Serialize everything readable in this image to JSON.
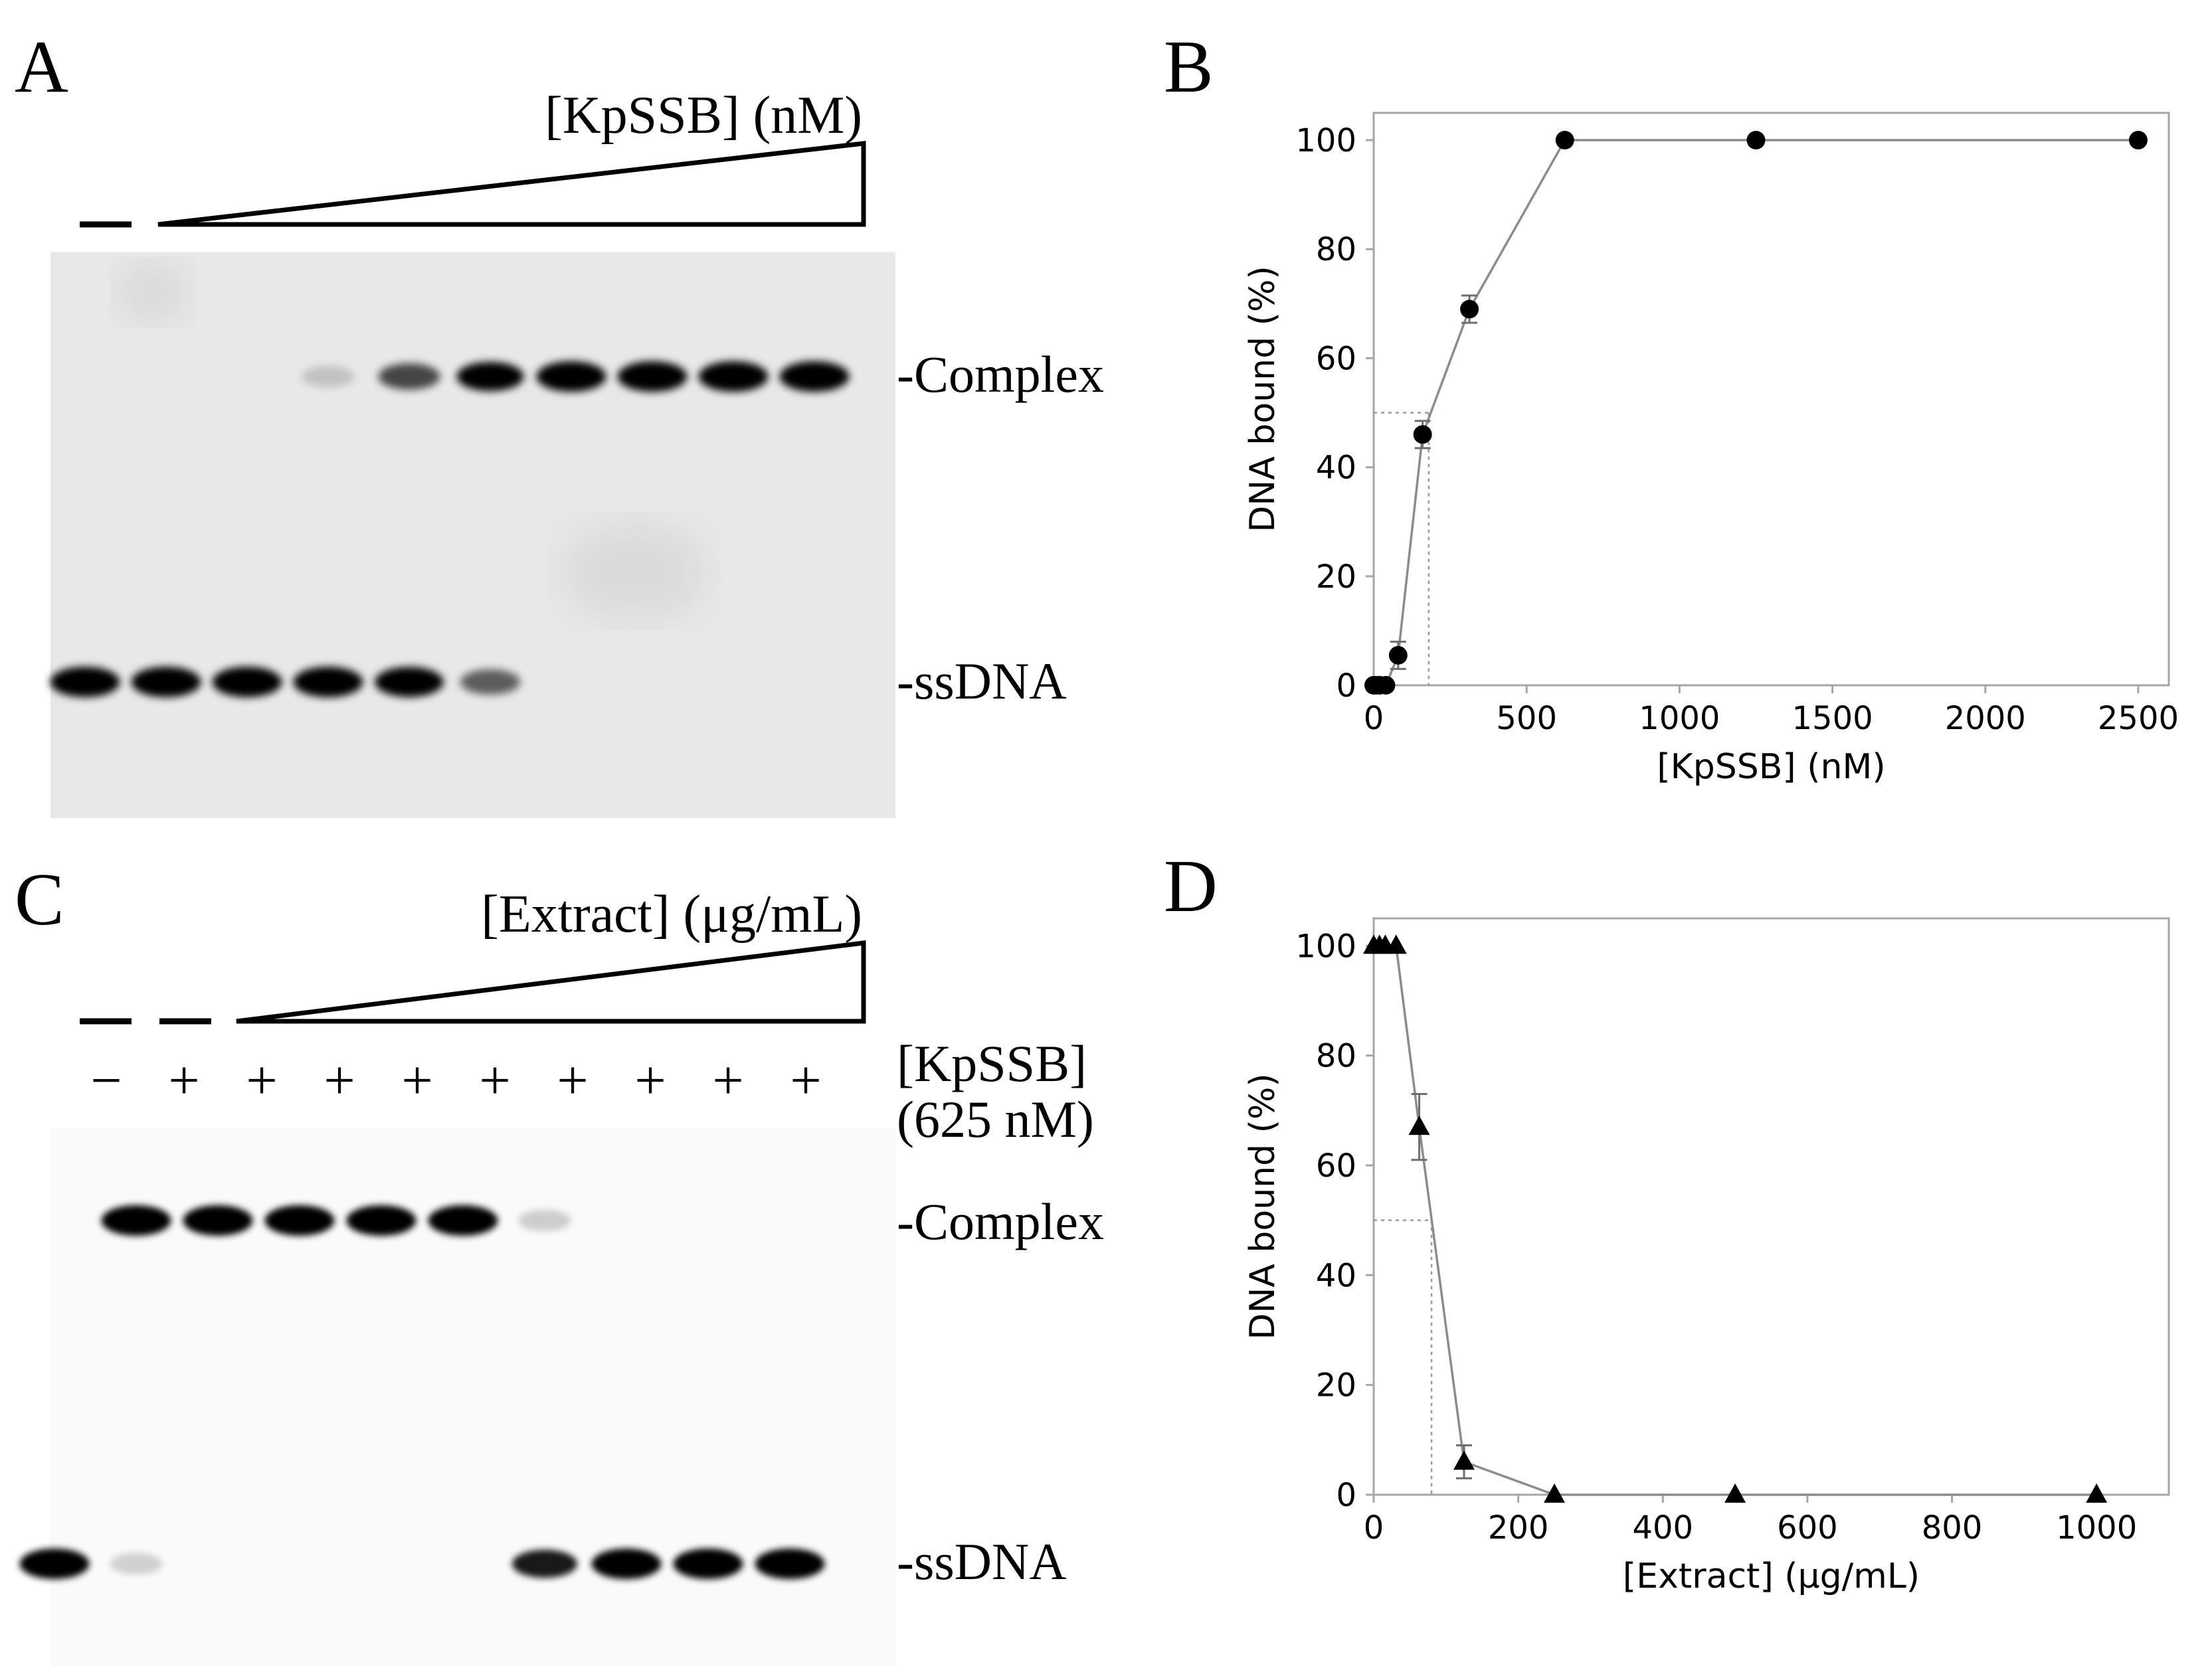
{
  "figure": {
    "panel_a": {
      "letter": "A",
      "gradient_label": "[KpSSB] (nM)",
      "band_labels": {
        "complex": "-Complex",
        "ssdna": "-ssDNA"
      },
      "lanes": [
        {
          "complex": 0.0,
          "free": 1.0
        },
        {
          "complex": 0.0,
          "free": 1.0
        },
        {
          "complex": 0.0,
          "free": 1.0
        },
        {
          "complex": 0.02,
          "free": 1.0
        },
        {
          "complex": 0.55,
          "free": 0.95
        },
        {
          "complex": 0.85,
          "free": 0.45
        },
        {
          "complex": 1.0,
          "free": 0.0
        },
        {
          "complex": 1.0,
          "free": 0.0
        },
        {
          "complex": 1.0,
          "free": 0.0
        },
        {
          "complex": 1.0,
          "free": 0.0
        }
      ]
    },
    "panel_c": {
      "letter": "C",
      "gradient_label": "[Extract] (μg/mL)",
      "kpssb_label_line1": "[KpSSB]",
      "kpssb_label_line2": "(625 nM)",
      "lane_signs": [
        "−",
        "+",
        "+",
        "+",
        "+",
        "+",
        "+",
        "+",
        "+",
        "+"
      ],
      "band_labels": {
        "complex": "-Complex",
        "ssdna": "-ssDNA"
      },
      "lanes": [
        {
          "complex": 0.0,
          "free": 1.0
        },
        {
          "complex": 1.0,
          "free": 0.02
        },
        {
          "complex": 1.0,
          "free": 0.0
        },
        {
          "complex": 1.0,
          "free": 0.0
        },
        {
          "complex": 1.0,
          "free": 0.0
        },
        {
          "complex": 1.0,
          "free": 0.0
        },
        {
          "complex": 0.03,
          "free": 0.75
        },
        {
          "complex": 0.0,
          "free": 1.0
        },
        {
          "complex": 0.0,
          "free": 1.0
        },
        {
          "complex": 0.0,
          "free": 1.0
        }
      ]
    }
  },
  "chart_data": [
    {
      "panel": "B",
      "type": "scatter",
      "title": "",
      "xlabel": "[KpSSB] (nM)",
      "ylabel": "DNA bound (%)",
      "xlim": [
        0,
        2600
      ],
      "ylim": [
        0,
        105
      ],
      "xticks": [
        0,
        500,
        1000,
        1500,
        2000,
        2500
      ],
      "yticks": [
        0,
        20,
        40,
        60,
        80,
        100
      ],
      "marker": "circle",
      "grid": false,
      "x": [
        0,
        10,
        20,
        40,
        80,
        160,
        313,
        625,
        1250,
        2500
      ],
      "y": [
        0,
        0,
        0,
        0,
        5.5,
        46,
        69,
        100,
        100,
        100
      ],
      "yerr": [
        0,
        0,
        0,
        0,
        2.5,
        2.5,
        2.5,
        0,
        0,
        0
      ],
      "reference_50": 180
    },
    {
      "panel": "D",
      "type": "scatter",
      "title": "",
      "xlabel": "[Extract] (μg/mL)",
      "ylabel": "DNA bound (%)",
      "xlim": [
        0,
        1100
      ],
      "ylim": [
        0,
        105
      ],
      "xticks": [
        0,
        200,
        400,
        600,
        800,
        1000
      ],
      "yticks": [
        0,
        20,
        40,
        60,
        80,
        100
      ],
      "marker": "triangle",
      "grid": false,
      "x": [
        0,
        8,
        16,
        31,
        63,
        125,
        250,
        500,
        1000
      ],
      "y": [
        100,
        100,
        100,
        100,
        67,
        6,
        0,
        0,
        0
      ],
      "yerr": [
        0,
        0,
        0,
        0,
        6,
        3,
        0,
        0,
        0
      ],
      "reference_50": 80
    }
  ]
}
